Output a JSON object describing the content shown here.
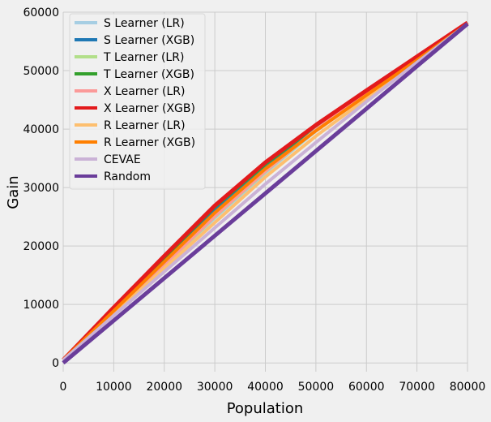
{
  "chart_data": {
    "type": "line",
    "title": "",
    "xlabel": "Population",
    "ylabel": "Gain",
    "xlim": [
      0,
      80000
    ],
    "ylim": [
      -1500,
      60000
    ],
    "xticks": [
      0,
      10000,
      20000,
      30000,
      40000,
      50000,
      60000,
      70000,
      80000
    ],
    "yticks": [
      0,
      10000,
      20000,
      30000,
      40000,
      50000,
      60000
    ],
    "grid": true,
    "legend_position": "top-left",
    "x": [
      0,
      10000,
      20000,
      30000,
      40000,
      50000,
      60000,
      70000,
      80000
    ],
    "series": [
      {
        "name": "S Learner (LR)",
        "color": "#a6cee3",
        "width": 4,
        "values": [
          500,
          8400,
          16500,
          24800,
          32500,
          39700,
          45800,
          51900,
          58200
        ]
      },
      {
        "name": "S Learner (XGB)",
        "color": "#1f78b4",
        "width": 4,
        "values": [
          500,
          9000,
          17600,
          26000,
          33300,
          40000,
          46100,
          52000,
          58200
        ]
      },
      {
        "name": "T Learner (LR)",
        "color": "#b2df8a",
        "width": 4,
        "values": [
          500,
          8500,
          16700,
          25000,
          32700,
          39800,
          45900,
          51900,
          58200
        ]
      },
      {
        "name": "T Learner (XGB)",
        "color": "#33a02c",
        "width": 4,
        "values": [
          500,
          9400,
          18000,
          26700,
          34000,
          40500,
          46500,
          52300,
          58200
        ]
      },
      {
        "name": "X Learner (LR)",
        "color": "#fb9a99",
        "width": 4,
        "values": [
          500,
          8600,
          16800,
          25100,
          32800,
          39900,
          46000,
          52000,
          58200
        ]
      },
      {
        "name": "X Learner (XGB)",
        "color": "#e31a1c",
        "width": 5,
        "values": [
          500,
          9500,
          18300,
          26900,
          34300,
          40700,
          46600,
          52400,
          58200
        ]
      },
      {
        "name": "R Learner (LR)",
        "color": "#fdbf6f",
        "width": 4,
        "values": [
          500,
          8300,
          16200,
          24000,
          31800,
          38800,
          45200,
          51500,
          58000
        ]
      },
      {
        "name": "R Learner (XGB)",
        "color": "#ff7f00",
        "width": 4,
        "values": [
          500,
          8900,
          17300,
          25700,
          33200,
          39700,
          45800,
          51800,
          58000
        ]
      },
      {
        "name": "CEVAE",
        "color": "#cab2d6",
        "width": 4,
        "values": [
          500,
          8100,
          15600,
          23100,
          30600,
          37700,
          44700,
          51400,
          58000
        ]
      },
      {
        "name": "Random",
        "color": "#6a3d9a",
        "width": 5,
        "values": [
          0,
          7250,
          14500,
          21750,
          29000,
          36250,
          43500,
          50750,
          58000
        ]
      }
    ]
  }
}
